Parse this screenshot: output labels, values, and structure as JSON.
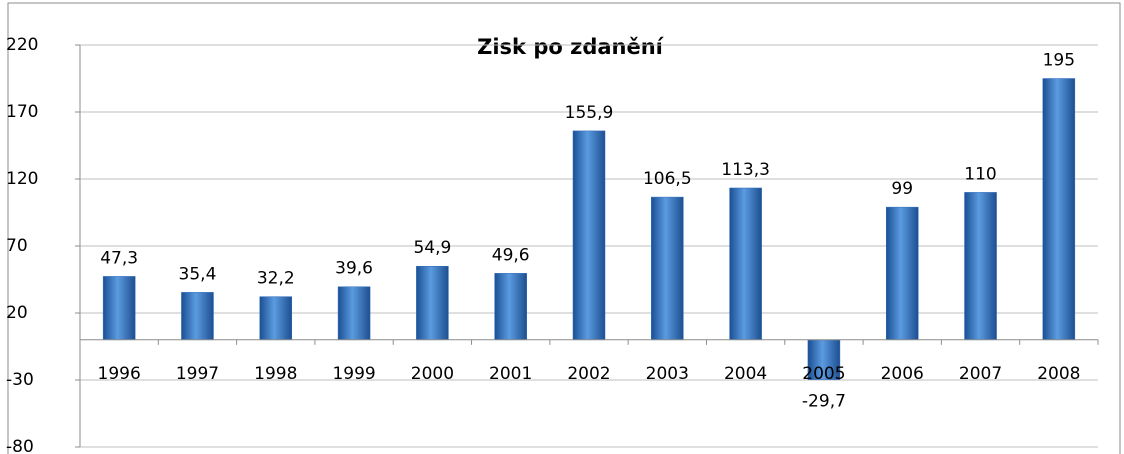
{
  "chart_data": {
    "type": "bar",
    "title": "Zisk po zdanění",
    "categories": [
      "1996",
      "1997",
      "1998",
      "1999",
      "2000",
      "2001",
      "2002",
      "2003",
      "2004",
      "2005",
      "2006",
      "2007",
      "2008"
    ],
    "values": [
      47.3,
      35.4,
      32.2,
      39.6,
      54.9,
      49.6,
      155.9,
      106.5,
      113.3,
      -29.7,
      99,
      110,
      195
    ],
    "value_labels": [
      "47,3",
      "35,4",
      "32,2",
      "39,6",
      "54,9",
      "49,6",
      "155,9",
      "106,5",
      "113,3",
      "-29,7",
      "99",
      "110",
      "195"
    ],
    "color": "#2e6bbd",
    "ylim": [
      -80,
      220
    ],
    "yticks": [
      -80,
      -30,
      20,
      70,
      120,
      170,
      220
    ],
    "grid": true
  }
}
